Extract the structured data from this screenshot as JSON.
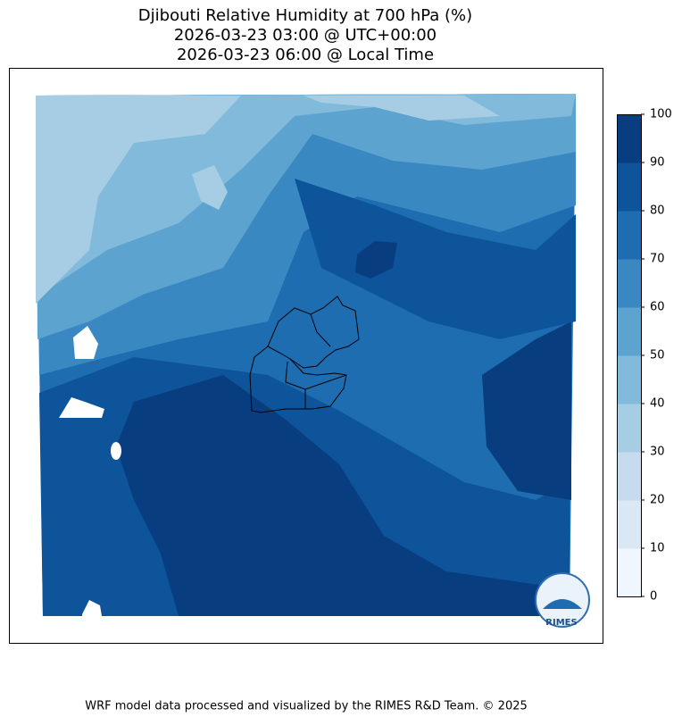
{
  "title": [
    "Djibouti Relative Humidity at 700 hPa (%)",
    "2026-03-23 03:00 @ UTC+00:00",
    "2026-03-23 06:00 @ Local Time"
  ],
  "colorbar": {
    "ticks": [
      0,
      10,
      20,
      30,
      40,
      50,
      60,
      70,
      80,
      90,
      100
    ],
    "colors": [
      "#f0f6fd",
      "#dae8f6",
      "#c7dbef",
      "#a6cde3",
      "#81badb",
      "#5ca3d0",
      "#3a88c1",
      "#1f6db1",
      "#0d549a",
      "#083d7f"
    ]
  },
  "logo": "RIMES",
  "footer": "WRF model data processed and visualized by the RIMES R&D Team. © 2025"
}
